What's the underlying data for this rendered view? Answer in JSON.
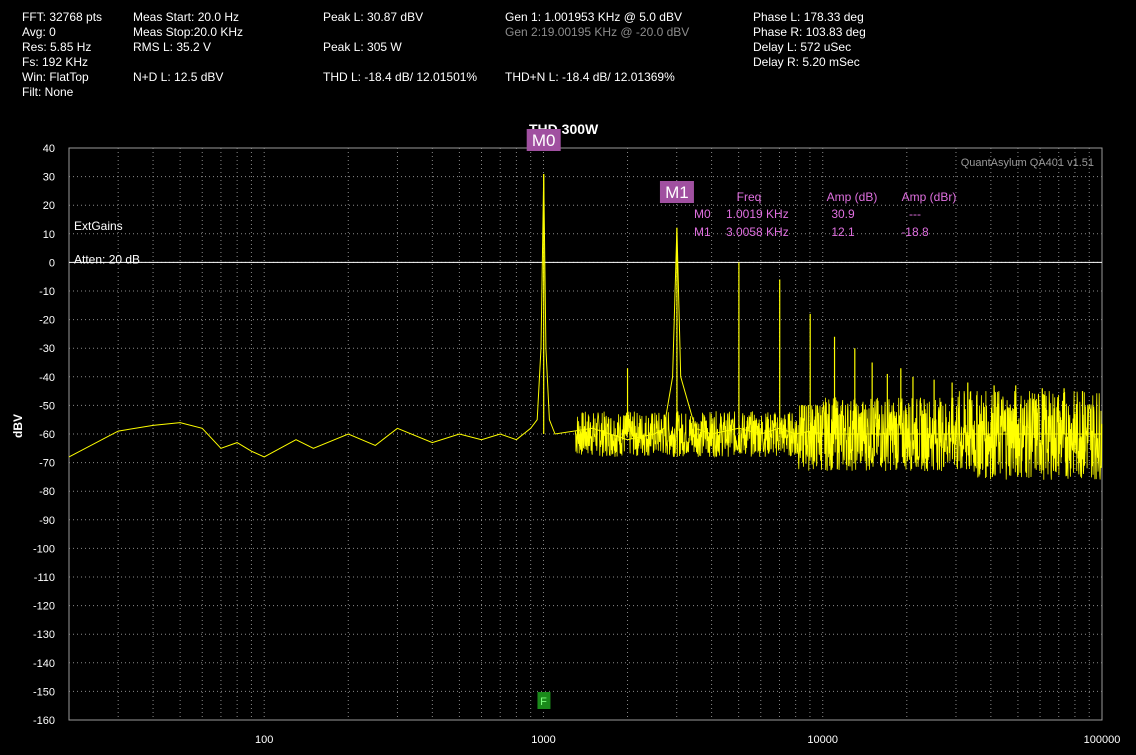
{
  "stats": {
    "col1": [
      "FFT: 32768 pts",
      "Avg: 0",
      "Res: 5.85 Hz",
      "Fs: 192 KHz",
      "Win: FlatTop",
      "Filt: None"
    ],
    "col2": [
      "Meas Start: 20.0 Hz",
      "Meas Stop:20.0 KHz",
      "RMS L: 35.2 V",
      "N+D L: 12.5 dBV"
    ],
    "col3": [
      "Peak L: 30.87 dBV",
      "Peak L: 305 W",
      "THD L: -18.4 dB/ 12.01501%"
    ],
    "col4": [
      "Gen 1: 1.001953 KHz @ 5.0  dBV",
      "Gen 2:19.00195 KHz @ -20.0  dBV",
      "THD+N L: -18.4 dB/ 12.01369%"
    ],
    "col5": [
      "Phase L: 178.33 deg",
      "Phase R: 103.83 deg",
      "Delay L: 572 uSec",
      "Delay R: 5.20 mSec"
    ]
  },
  "watermark": "QuantAsylum QA401 v1.51",
  "overlay": {
    "ext_gains": "ExtGains",
    "atten": "Atten: 20 dB",
    "reference_level": 0
  },
  "markers": {
    "headers": [
      "Freq",
      "Amp (dB)",
      "Amp (dBr)"
    ],
    "items": [
      {
        "id": "M0",
        "freq": 1001.9,
        "freq_label": "1.0019 KHz",
        "amp_db": "30.9",
        "amp_dbr": "---"
      },
      {
        "id": "M1",
        "freq": 3005.8,
        "freq_label": "3.0058 KHz",
        "amp_db": "12.1",
        "amp_dbr": "-18.8"
      }
    ],
    "f_marker": {
      "label": "F",
      "freq": 1000
    }
  },
  "colors": {
    "trace": "#ffff00",
    "grid": "#8a8a8a",
    "marker_bg": "#a050a0",
    "marker_text": "#e070e0",
    "f_marker_bg": "#1a8a1a"
  },
  "chart_data": {
    "type": "line",
    "title": "THD 300W",
    "ylabel": "dBV",
    "xlabel": "",
    "xscale": "log",
    "xlim": [
      20,
      100000
    ],
    "ylim": [
      -160,
      40
    ],
    "yticks": [
      40,
      30,
      20,
      10,
      0,
      -10,
      -20,
      -30,
      -40,
      -50,
      -60,
      -70,
      -80,
      -90,
      -100,
      -110,
      -120,
      -130,
      -140,
      -150,
      -160
    ],
    "xticks": [
      100,
      1000,
      10000,
      100000
    ],
    "xtick_labels": [
      "100",
      "1000",
      "10000",
      "100000"
    ],
    "grid": true,
    "series": [
      {
        "values_note": "",
        "x": [
          20,
          30,
          40,
          50,
          60,
          70,
          80,
          90,
          100,
          130,
          150,
          200,
          250,
          300,
          400,
          500,
          600,
          700,
          800,
          900,
          950,
          980,
          1001.9,
          1020,
          1050,
          1100,
          1500,
          2000,
          2500,
          2700,
          2900,
          3005.8,
          3100,
          3500,
          4000,
          5000,
          6000,
          7000,
          8000,
          9000,
          10000,
          15000,
          20000,
          30000,
          50000,
          70000,
          100000
        ],
        "y": [
          -68,
          -59,
          -57,
          -56,
          -58,
          -65,
          -63,
          -66,
          -68,
          -62,
          -65,
          -60,
          -64,
          -58,
          -63,
          -60,
          -62,
          -60,
          -62,
          -58,
          -55,
          -30,
          30.9,
          -30,
          -55,
          -60,
          -58,
          -62,
          -60,
          -58,
          -40,
          12.1,
          -40,
          -58,
          -60,
          -58,
          -60,
          -58,
          -60,
          -59,
          -60,
          -60,
          -60,
          -60,
          -60,
          -60,
          -60
        ]
      }
    ],
    "peaks": [
      {
        "x": 1001.9,
        "y": 30.9
      },
      {
        "x": 2000,
        "y": -37
      },
      {
        "x": 3005.8,
        "y": 12.1
      },
      {
        "x": 5010,
        "y": 0
      },
      {
        "x": 7014,
        "y": -6
      },
      {
        "x": 9018,
        "y": -18
      },
      {
        "x": 11022,
        "y": -26
      },
      {
        "x": 13026,
        "y": -30
      },
      {
        "x": 15030,
        "y": -35
      },
      {
        "x": 17034,
        "y": -39
      },
      {
        "x": 19038,
        "y": -37
      },
      {
        "x": 21042,
        "y": -40
      },
      {
        "x": 25050,
        "y": -41
      },
      {
        "x": 29058,
        "y": -42
      },
      {
        "x": 33066,
        "y": -42
      },
      {
        "x": 41082,
        "y": -43
      },
      {
        "x": 49098,
        "y": -43
      },
      {
        "x": 61122,
        "y": -44
      },
      {
        "x": 73146,
        "y": -44
      },
      {
        "x": 85170,
        "y": -45
      }
    ]
  }
}
